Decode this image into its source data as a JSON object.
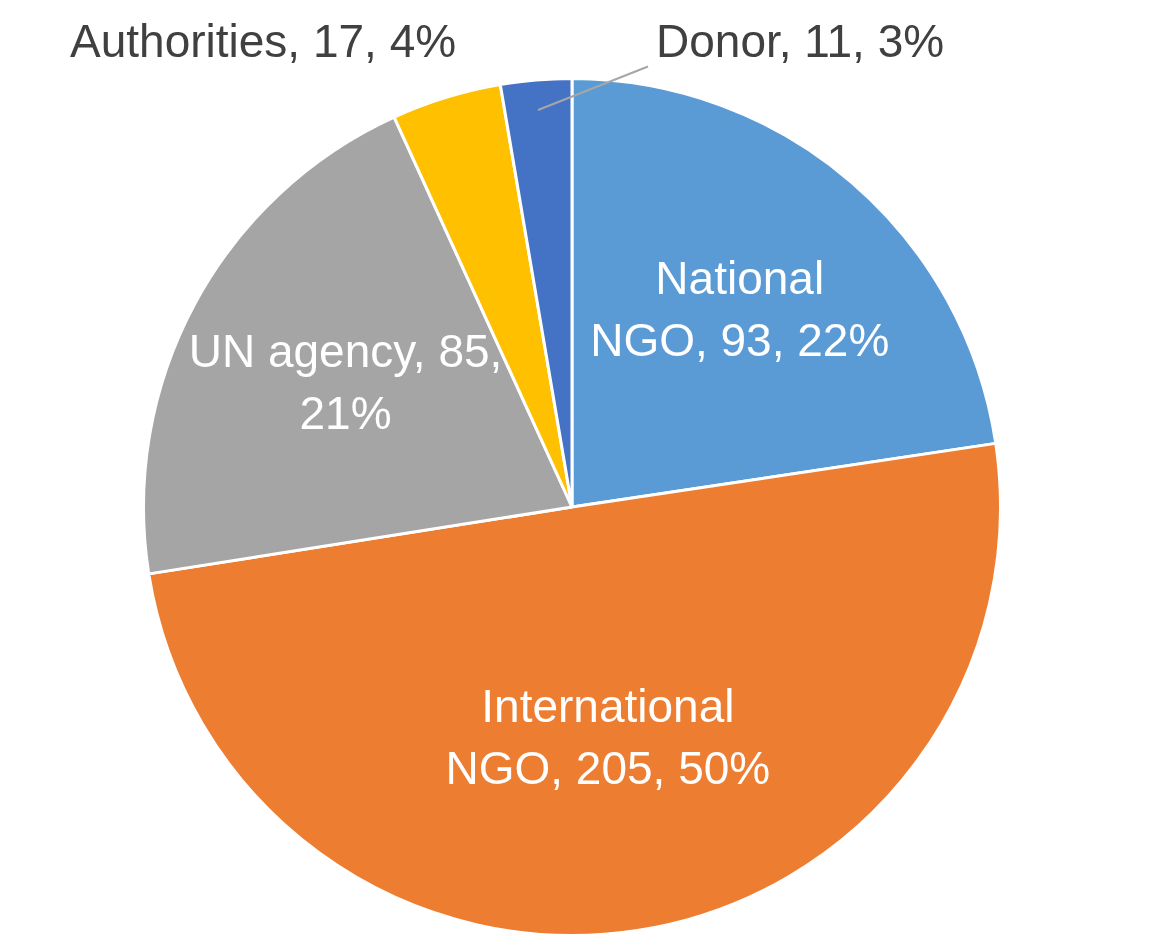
{
  "chart_data": {
    "type": "pie",
    "categories": [
      "National NGO",
      "International NGO",
      "UN agency",
      "Authorities",
      "Donor"
    ],
    "values": [
      93,
      205,
      85,
      17,
      11
    ],
    "colors": [
      "#5b9bd5",
      "#ed7d31",
      "#a5a5a5",
      "#ffc000",
      "#4472c4"
    ],
    "value_labels": [
      "93, 22%",
      "205, 50%",
      "85, 21%",
      "17, 4%",
      "11, 3%"
    ],
    "legend": false
  }
}
